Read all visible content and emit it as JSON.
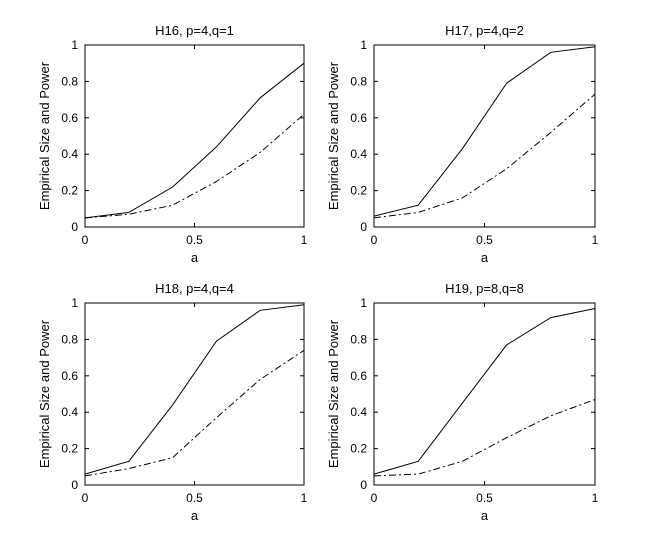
{
  "chart_data": [
    {
      "type": "line",
      "title": "H16, p=4,q=1",
      "xlabel": "a",
      "ylabel": "Empirical Size and Power",
      "xlim": [
        0,
        1
      ],
      "ylim": [
        0,
        1
      ],
      "x_ticks": [
        "0",
        "0.5",
        "1"
      ],
      "y_ticks": [
        "0",
        "0.2",
        "0.4",
        "0.6",
        "0.8",
        "1"
      ],
      "x": [
        0,
        0.2,
        0.4,
        0.6,
        0.8,
        1.0
      ],
      "series": [
        {
          "name": "solid",
          "style": "solid",
          "values": [
            0.05,
            0.08,
            0.22,
            0.44,
            0.71,
            0.9
          ]
        },
        {
          "name": "dash-dot",
          "style": "dash-dot",
          "values": [
            0.05,
            0.07,
            0.12,
            0.25,
            0.41,
            0.62
          ]
        }
      ]
    },
    {
      "type": "line",
      "title": "H17, p=4,q=2",
      "xlabel": "a",
      "ylabel": "Empirical Size and Power",
      "xlim": [
        0,
        1
      ],
      "ylim": [
        0,
        1
      ],
      "x_ticks": [
        "0",
        "0.5",
        "1"
      ],
      "y_ticks": [
        "0",
        "0.2",
        "0.4",
        "0.6",
        "0.8",
        "1"
      ],
      "x": [
        0,
        0.2,
        0.4,
        0.6,
        0.8,
        1.0
      ],
      "series": [
        {
          "name": "solid",
          "style": "solid",
          "values": [
            0.06,
            0.12,
            0.43,
            0.79,
            0.96,
            0.99
          ]
        },
        {
          "name": "dash-dot",
          "style": "dash-dot",
          "values": [
            0.05,
            0.08,
            0.16,
            0.32,
            0.52,
            0.73
          ]
        }
      ]
    },
    {
      "type": "line",
      "title": "H18, p=4,q=4",
      "xlabel": "a",
      "ylabel": "Empirical Size and Power",
      "xlim": [
        0,
        1
      ],
      "ylim": [
        0,
        1
      ],
      "x_ticks": [
        "0",
        "0.5",
        "1"
      ],
      "y_ticks": [
        "0",
        "0.2",
        "0.4",
        "0.6",
        "0.8",
        "1"
      ],
      "x": [
        0,
        0.2,
        0.4,
        0.6,
        0.8,
        1.0
      ],
      "series": [
        {
          "name": "solid",
          "style": "solid",
          "values": [
            0.06,
            0.13,
            0.44,
            0.79,
            0.96,
            0.99
          ]
        },
        {
          "name": "dash-dot",
          "style": "dash-dot",
          "values": [
            0.05,
            0.09,
            0.15,
            0.37,
            0.58,
            0.74
          ]
        }
      ]
    },
    {
      "type": "line",
      "title": "H19, p=8,q=8",
      "xlabel": "a",
      "ylabel": "Empirical Size and Power",
      "xlim": [
        0,
        1
      ],
      "ylim": [
        0,
        1
      ],
      "x_ticks": [
        "0",
        "0.5",
        "1"
      ],
      "y_ticks": [
        "0",
        "0.2",
        "0.4",
        "0.6",
        "0.8",
        "1"
      ],
      "x": [
        0,
        0.2,
        0.4,
        0.6,
        0.8,
        1.0
      ],
      "series": [
        {
          "name": "solid",
          "style": "solid",
          "values": [
            0.06,
            0.13,
            0.45,
            0.77,
            0.92,
            0.97
          ]
        },
        {
          "name": "dash-dot",
          "style": "dash-dot",
          "values": [
            0.05,
            0.06,
            0.13,
            0.26,
            0.38,
            0.47
          ]
        }
      ]
    }
  ]
}
